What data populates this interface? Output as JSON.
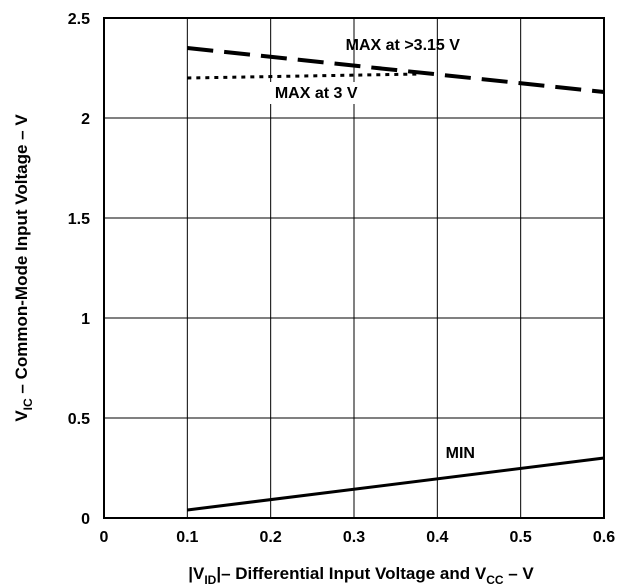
{
  "chart_data": {
    "type": "line",
    "xlabel": {
      "prefix": "|V",
      "prefix_sub": "ID",
      "middle": "|– Differential Input Voltage and V",
      "middle_sub": "CC",
      "suffix": " – V"
    },
    "ylabel": {
      "prefix": "V",
      "prefix_sub": "IC",
      "suffix": " – Common-Mode Input Voltage – V"
    },
    "xlim": [
      0,
      0.6
    ],
    "ylim": [
      0,
      2.5
    ],
    "x_ticks": [
      "0",
      "0.1",
      "0.2",
      "0.3",
      "0.4",
      "0.5",
      "0.6"
    ],
    "y_ticks": [
      "0",
      "0.5",
      "1",
      "1.5",
      "2",
      "2.5"
    ],
    "grid": true,
    "series": [
      {
        "name": "MAX at >3.15 V",
        "style": "dashed",
        "x": [
          0.1,
          0.6
        ],
        "y": [
          2.35,
          2.13
        ]
      },
      {
        "name": "MAX at 3 V",
        "style": "dotted",
        "x": [
          0.1,
          0.38
        ],
        "y": [
          2.2,
          2.22
        ]
      },
      {
        "name": "MIN",
        "style": "solid",
        "x": [
          0.1,
          0.6
        ],
        "y": [
          0.04,
          0.3
        ]
      }
    ],
    "colors": {
      "line": "#000000",
      "grid": "#000000",
      "background": "#ffffff"
    }
  }
}
